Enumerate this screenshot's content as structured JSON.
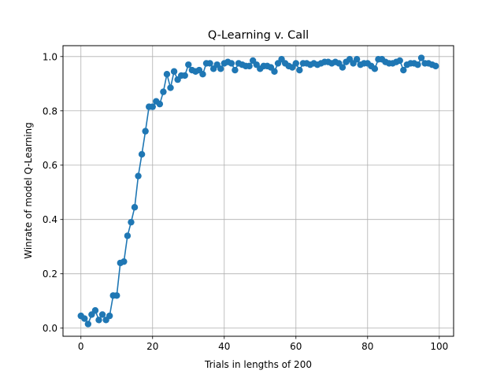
{
  "chart_data": {
    "type": "line",
    "title": "Q-Learning v. Call",
    "xlabel": "Trials in lengths of 200",
    "ylabel": "Winrate of model Q-Learning",
    "xlim": [
      -5,
      104
    ],
    "ylim": [
      -0.03,
      1.04
    ],
    "xticks": [
      0,
      20,
      40,
      60,
      80,
      100
    ],
    "yticks": [
      0.0,
      0.2,
      0.4,
      0.6,
      0.8,
      1.0
    ],
    "xtick_labels": [
      "0",
      "20",
      "40",
      "60",
      "80",
      "100"
    ],
    "ytick_labels": [
      "0.0",
      "0.2",
      "0.4",
      "0.6",
      "0.8",
      "1.0"
    ],
    "grid": true,
    "markers": "circle",
    "colors": {
      "series": "#1f77b4",
      "grid": "#b0b0b0"
    },
    "series": [
      {
        "x": [
          0,
          1,
          2,
          3,
          4,
          5,
          6,
          7,
          8,
          9,
          10,
          11,
          12,
          13,
          14,
          15,
          16,
          17,
          18,
          19,
          20,
          21,
          22,
          23,
          24,
          25,
          26,
          27,
          28,
          29,
          30,
          31,
          32,
          33,
          34,
          35,
          36,
          37,
          38,
          39,
          40,
          41,
          42,
          43,
          44,
          45,
          46,
          47,
          48,
          49,
          50,
          51,
          52,
          53,
          54,
          55,
          56,
          57,
          58,
          59,
          60,
          61,
          62,
          63,
          64,
          65,
          66,
          67,
          68,
          69,
          70,
          71,
          72,
          73,
          74,
          75,
          76,
          77,
          78,
          79,
          80,
          81,
          82,
          83,
          84,
          85,
          86,
          87,
          88,
          89,
          90,
          91,
          92,
          93,
          94,
          95,
          96,
          97,
          98,
          99
        ],
        "values": [
          0.045,
          0.035,
          0.015,
          0.05,
          0.065,
          0.03,
          0.05,
          0.03,
          0.045,
          0.12,
          0.12,
          0.24,
          0.245,
          0.34,
          0.39,
          0.445,
          0.56,
          0.64,
          0.725,
          0.815,
          0.815,
          0.835,
          0.825,
          0.87,
          0.935,
          0.885,
          0.945,
          0.915,
          0.93,
          0.93,
          0.97,
          0.95,
          0.945,
          0.95,
          0.935,
          0.975,
          0.975,
          0.955,
          0.97,
          0.955,
          0.975,
          0.98,
          0.975,
          0.95,
          0.975,
          0.97,
          0.965,
          0.965,
          0.985,
          0.97,
          0.955,
          0.965,
          0.965,
          0.96,
          0.945,
          0.975,
          0.99,
          0.975,
          0.965,
          0.96,
          0.975,
          0.95,
          0.975,
          0.975,
          0.97,
          0.975,
          0.97,
          0.975,
          0.98,
          0.98,
          0.975,
          0.98,
          0.975,
          0.96,
          0.98,
          0.99,
          0.975,
          0.99,
          0.97,
          0.975,
          0.975,
          0.965,
          0.955,
          0.99,
          0.99,
          0.98,
          0.975,
          0.975,
          0.98,
          0.985,
          0.95,
          0.97,
          0.975,
          0.975,
          0.97,
          0.995,
          0.975,
          0.975,
          0.97,
          0.965
        ]
      }
    ]
  }
}
